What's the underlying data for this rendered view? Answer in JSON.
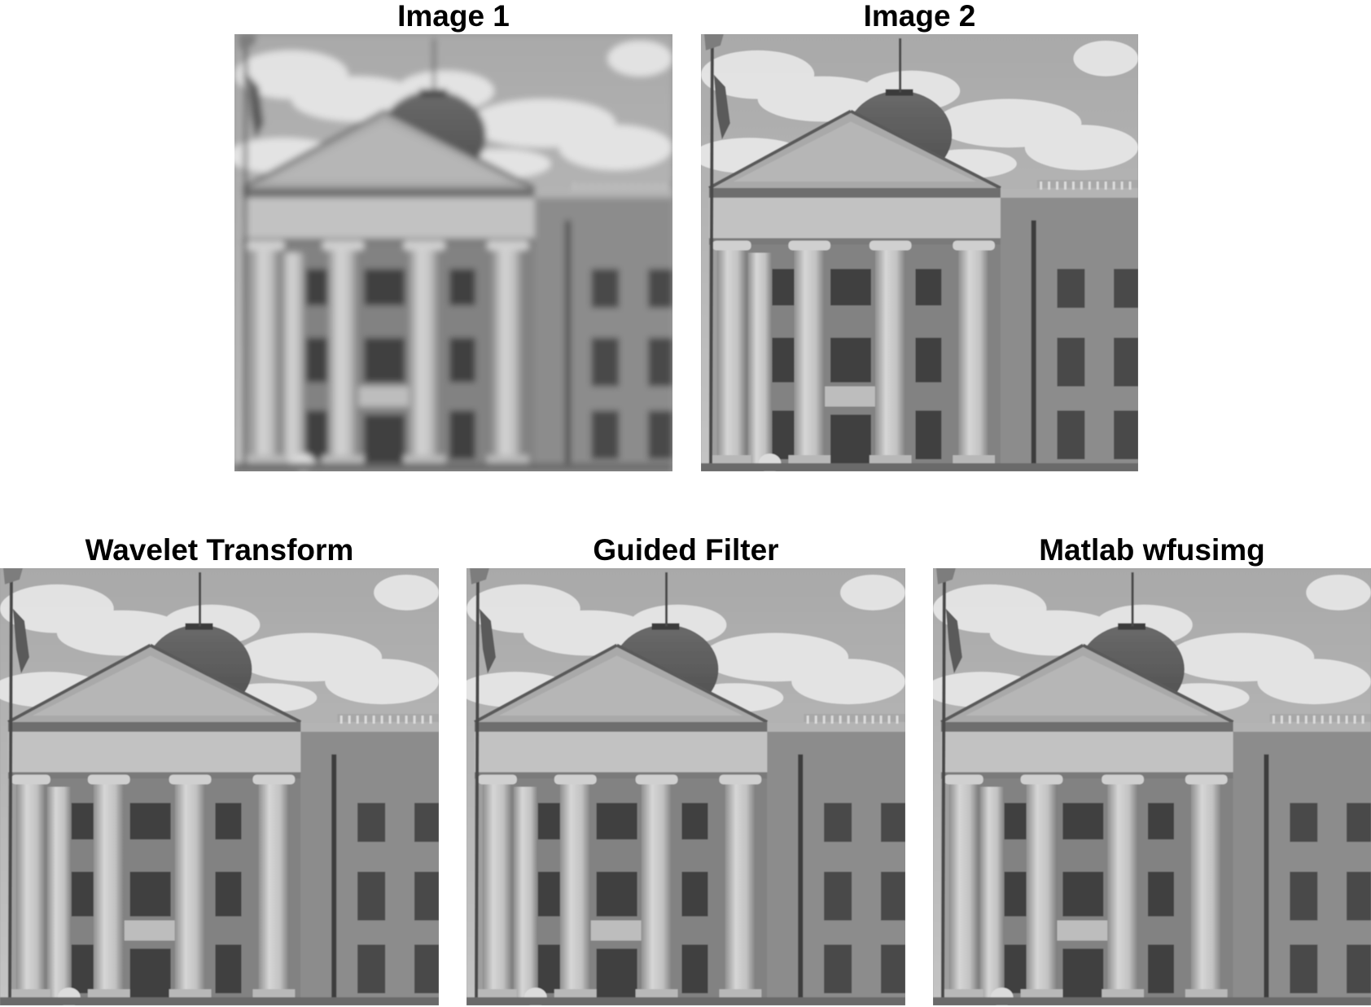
{
  "figure": {
    "panels": [
      {
        "title": "Image 1",
        "image": "building-photo-blurred-foreground"
      },
      {
        "title": "Image 2",
        "image": "building-photo-sharp-foreground"
      },
      {
        "title": "Wavelet Transform",
        "image": "building-photo-fused"
      },
      {
        "title": "Guided Filter",
        "image": "building-photo-fused"
      },
      {
        "title": "Matlab wfusimg",
        "image": "building-photo-fused"
      }
    ]
  }
}
